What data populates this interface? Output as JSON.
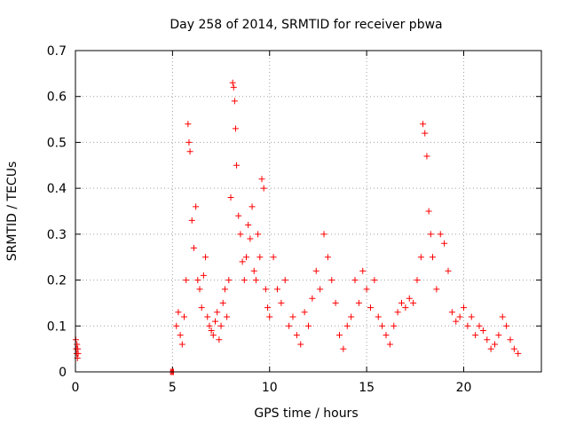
{
  "chart_data": {
    "type": "scatter",
    "title": "Day 258 of 2014, SRMTID for receiver pbwa",
    "xlabel": "GPS time / hours",
    "ylabel": "SRMTID / TECUs",
    "xlim": [
      0,
      24
    ],
    "ylim": [
      0,
      0.7
    ],
    "xticks": [
      0,
      5,
      10,
      15,
      20
    ],
    "yticks": [
      0,
      0.1,
      0.2,
      0.3,
      0.4,
      0.5,
      0.6,
      0.7
    ],
    "xtick_labels": [
      "0",
      "5",
      "10",
      "15",
      "20"
    ],
    "ytick_labels": [
      "0",
      "0.1",
      "0.2",
      "0.3",
      "0.4",
      "0.5",
      "0.6",
      "0.7"
    ],
    "grid": true,
    "marker": "+",
    "color": "#ff0000",
    "series": [
      {
        "name": "SRMTID",
        "x": [
          0.02,
          0.04,
          0.06,
          0.08,
          0.1,
          0.12,
          0.14,
          4.9,
          4.95,
          5.0,
          5.05,
          5.2,
          5.3,
          5.4,
          5.5,
          5.6,
          5.7,
          5.8,
          5.85,
          5.9,
          6.0,
          6.1,
          6.2,
          6.3,
          6.4,
          6.5,
          6.6,
          6.7,
          6.8,
          6.9,
          7.0,
          7.1,
          7.2,
          7.3,
          7.4,
          7.5,
          7.6,
          7.7,
          7.8,
          7.9,
          8.0,
          8.1,
          8.15,
          8.2,
          8.25,
          8.3,
          8.4,
          8.5,
          8.6,
          8.7,
          8.8,
          8.9,
          9.0,
          9.1,
          9.2,
          9.3,
          9.4,
          9.5,
          9.6,
          9.7,
          9.8,
          9.9,
          10.0,
          10.2,
          10.4,
          10.6,
          10.8,
          11.0,
          11.2,
          11.4,
          11.6,
          11.8,
          12.0,
          12.2,
          12.4,
          12.6,
          12.8,
          13.0,
          13.2,
          13.4,
          13.6,
          13.8,
          14.0,
          14.2,
          14.4,
          14.6,
          14.8,
          15.0,
          15.2,
          15.4,
          15.6,
          15.8,
          16.0,
          16.2,
          16.4,
          16.6,
          16.8,
          17.0,
          17.2,
          17.4,
          17.6,
          17.8,
          17.9,
          18.0,
          18.1,
          18.2,
          18.3,
          18.4,
          18.6,
          18.8,
          19.0,
          19.2,
          19.4,
          19.6,
          19.8,
          20.0,
          20.2,
          20.4,
          20.6,
          20.8,
          21.0,
          21.2,
          21.4,
          21.6,
          21.8,
          22.0,
          22.2,
          22.4,
          22.6,
          22.8
        ],
        "y": [
          0.07,
          0.05,
          0.04,
          0.06,
          0.03,
          0.05,
          0.04,
          0.0,
          0.0,
          0.0,
          0.0,
          0.1,
          0.13,
          0.08,
          0.06,
          0.12,
          0.2,
          0.54,
          0.5,
          0.48,
          0.33,
          0.27,
          0.36,
          0.2,
          0.18,
          0.14,
          0.21,
          0.25,
          0.12,
          0.1,
          0.09,
          0.08,
          0.11,
          0.13,
          0.07,
          0.1,
          0.15,
          0.18,
          0.12,
          0.2,
          0.38,
          0.63,
          0.62,
          0.59,
          0.53,
          0.45,
          0.34,
          0.3,
          0.24,
          0.2,
          0.25,
          0.32,
          0.29,
          0.36,
          0.22,
          0.2,
          0.3,
          0.25,
          0.42,
          0.4,
          0.18,
          0.14,
          0.12,
          0.25,
          0.18,
          0.15,
          0.2,
          0.1,
          0.12,
          0.08,
          0.06,
          0.13,
          0.1,
          0.16,
          0.22,
          0.18,
          0.3,
          0.25,
          0.2,
          0.15,
          0.08,
          0.05,
          0.1,
          0.12,
          0.2,
          0.15,
          0.22,
          0.18,
          0.14,
          0.2,
          0.12,
          0.1,
          0.08,
          0.06,
          0.1,
          0.13,
          0.15,
          0.14,
          0.16,
          0.15,
          0.2,
          0.25,
          0.54,
          0.52,
          0.47,
          0.35,
          0.3,
          0.25,
          0.18,
          0.3,
          0.28,
          0.22,
          0.13,
          0.11,
          0.12,
          0.14,
          0.1,
          0.12,
          0.08,
          0.1,
          0.09,
          0.07,
          0.05,
          0.06,
          0.08,
          0.12,
          0.1,
          0.07,
          0.05,
          0.04
        ]
      }
    ]
  }
}
